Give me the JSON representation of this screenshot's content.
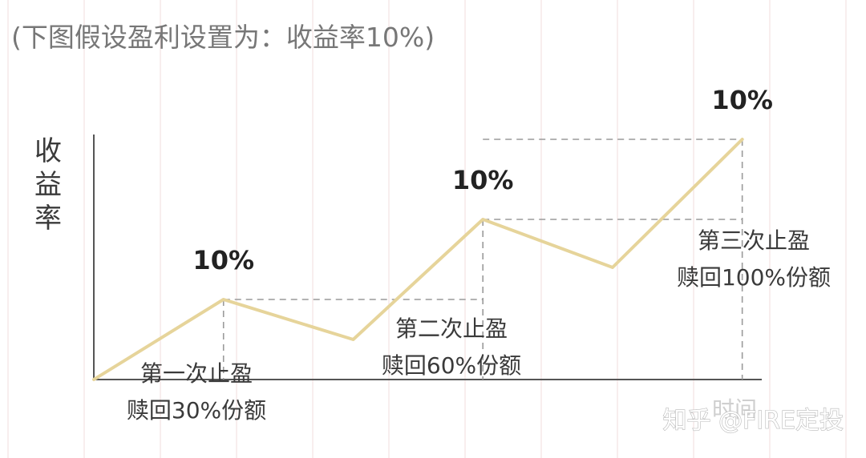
{
  "caption": "(下图假设盈利设置为：收益率10%)",
  "watermark": "知乎 @FIRE定投",
  "colors": {
    "line": "#e6d49a",
    "axis": "#555555",
    "guide": "#9a9a9a",
    "grid": "#f2dede",
    "text": "#3a3a3a",
    "peak_label": "#222222"
  },
  "chart_data": {
    "type": "line",
    "ylabel": "收益率",
    "xlabel": "时间",
    "x": [
      0,
      1,
      2,
      3,
      4,
      5
    ],
    "values": [
      0,
      10,
      5,
      20,
      14,
      30
    ],
    "xlim": [
      0,
      5.2
    ],
    "ylim": [
      0,
      31
    ],
    "peak_labels": [
      {
        "x": 1,
        "y": 10,
        "text": "10%"
      },
      {
        "x": 3,
        "y": 20,
        "text": "10%"
      },
      {
        "x": 5,
        "y": 30,
        "text": "10%"
      }
    ],
    "annotations": [
      {
        "line1": "第一次止盈",
        "line2": "赎回30%份额"
      },
      {
        "line1": "第二次止盈",
        "line2": "赎回60%份额"
      },
      {
        "line1": "第三次止盈",
        "line2": "赎回100%份额"
      }
    ]
  }
}
